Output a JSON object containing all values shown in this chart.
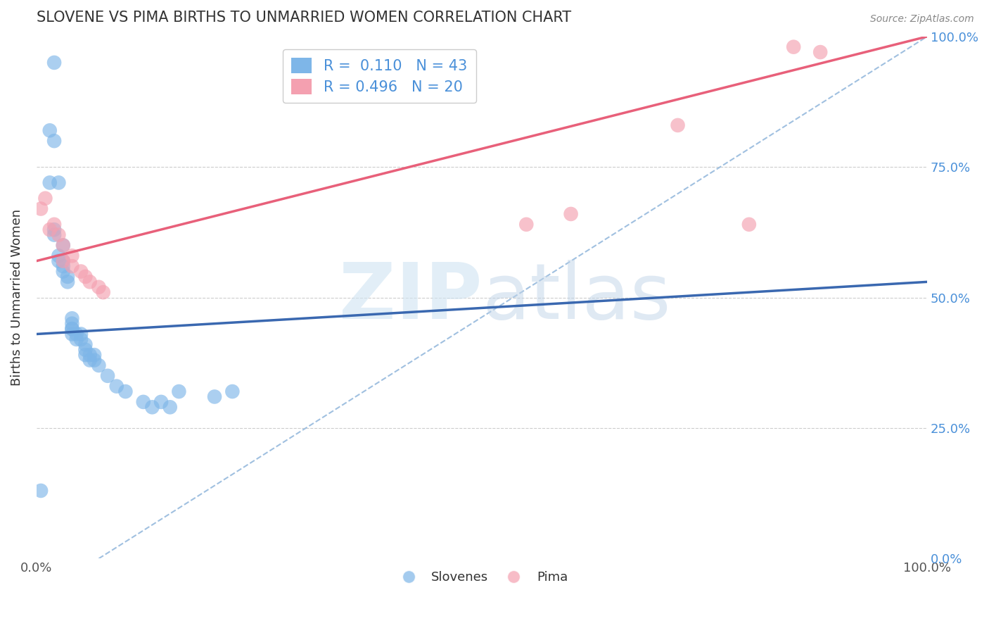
{
  "title": "SLOVENE VS PIMA BIRTHS TO UNMARRIED WOMEN CORRELATION CHART",
  "source": "Source: ZipAtlas.com",
  "ylabel": "Births to Unmarried Women",
  "slovene_color": "#7EB6E8",
  "pima_color": "#F4A0B0",
  "blue_line_color": "#3A68B0",
  "pink_line_color": "#E8607A",
  "dashed_line_color": "#A0C0E0",
  "grid_color": "#CCCCCC",
  "background_color": "#FFFFFF",
  "slovene_x": [
    0.005,
    0.015,
    0.02,
    0.02,
    0.02,
    0.02,
    0.025,
    0.025,
    0.03,
    0.03,
    0.03,
    0.035,
    0.035,
    0.04,
    0.04,
    0.04,
    0.04,
    0.04,
    0.045,
    0.045,
    0.05,
    0.05,
    0.055,
    0.055,
    0.055,
    0.06,
    0.06,
    0.065,
    0.065,
    0.07,
    0.08,
    0.09,
    0.1,
    0.12,
    0.13,
    0.14,
    0.15,
    0.16,
    0.2,
    0.22,
    0.015,
    0.025,
    0.03
  ],
  "slovene_y": [
    0.13,
    0.82,
    0.62,
    0.63,
    0.8,
    0.95,
    0.57,
    0.58,
    0.55,
    0.56,
    0.57,
    0.53,
    0.54,
    0.43,
    0.44,
    0.44,
    0.45,
    0.46,
    0.42,
    0.43,
    0.42,
    0.43,
    0.39,
    0.4,
    0.41,
    0.38,
    0.39,
    0.38,
    0.39,
    0.37,
    0.35,
    0.33,
    0.32,
    0.3,
    0.29,
    0.3,
    0.29,
    0.32,
    0.31,
    0.32,
    0.72,
    0.72,
    0.6
  ],
  "pima_x": [
    0.005,
    0.01,
    0.015,
    0.02,
    0.025,
    0.03,
    0.03,
    0.04,
    0.04,
    0.05,
    0.055,
    0.06,
    0.07,
    0.075,
    0.55,
    0.6,
    0.72,
    0.8,
    0.85,
    0.88
  ],
  "pima_y": [
    0.67,
    0.69,
    0.63,
    0.64,
    0.62,
    0.6,
    0.57,
    0.56,
    0.58,
    0.55,
    0.54,
    0.53,
    0.52,
    0.51,
    0.64,
    0.66,
    0.83,
    0.64,
    0.98,
    0.97
  ],
  "blue_line_x": [
    0.0,
    1.0
  ],
  "blue_line_y": [
    0.43,
    0.53
  ],
  "pink_line_x": [
    0.0,
    1.0
  ],
  "pink_line_y": [
    0.57,
    1.0
  ],
  "dashed_line_x": [
    0.07,
    1.0
  ],
  "dashed_line_y": [
    0.0,
    1.0
  ],
  "R_slovene": 0.11,
  "R_pima": 0.496,
  "N_slovene": 43,
  "N_pima": 20,
  "xlim": [
    0.0,
    1.0
  ],
  "ylim": [
    0.0,
    1.0
  ]
}
